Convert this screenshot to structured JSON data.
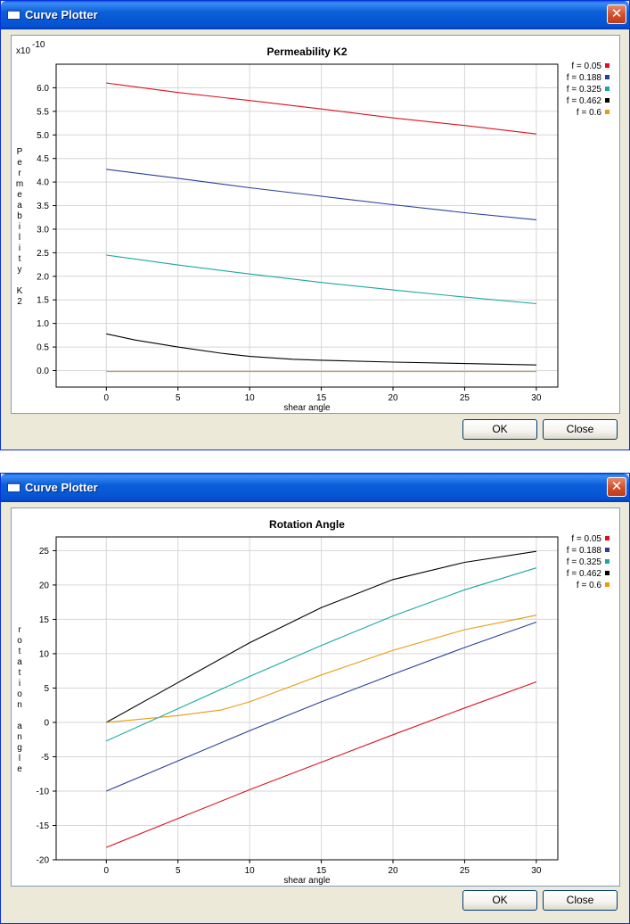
{
  "windows": [
    {
      "title": "Curve Plotter",
      "ok_label": "OK",
      "close_label": "Close",
      "icons": {
        "app": "window-icon",
        "close": "close-icon"
      },
      "chart_data": {
        "type": "line",
        "title": "Permeability K2",
        "xlabel": "shear angle",
        "ylabel": "Permeability K2",
        "y_exponent": "x10",
        "y_exponent_power": "-10",
        "xlim": [
          -3.5,
          31.5
        ],
        "ylim": [
          -0.35,
          6.5
        ],
        "x_ticks": [
          0,
          5,
          10,
          15,
          20,
          25,
          30
        ],
        "y_ticks": [
          0.0,
          0.5,
          1.0,
          1.5,
          2.0,
          2.5,
          3.0,
          3.5,
          4.0,
          4.5,
          5.0,
          5.5,
          6.0
        ],
        "y_tick_labels": [
          "0.0",
          "0.5",
          "1.0",
          "1.5",
          "2.0",
          "2.5",
          "3.0",
          "3.5",
          "4.0",
          "4.5",
          "5.0",
          "5.5",
          "6.0"
        ],
        "grid": true,
        "legend_position": "right",
        "series": [
          {
            "name": "f = 0.05",
            "color": "#dd1122",
            "x": [
              0,
              5,
              10,
              15,
              20,
              25,
              30
            ],
            "values": [
              6.1,
              5.9,
              5.73,
              5.55,
              5.36,
              5.2,
              5.02
            ]
          },
          {
            "name": "f = 0.188",
            "color": "#2a3f9a",
            "x": [
              0,
              5,
              10,
              15,
              20,
              25,
              30
            ],
            "values": [
              4.27,
              4.08,
              3.88,
              3.7,
              3.52,
              3.35,
              3.2
            ]
          },
          {
            "name": "f = 0.325",
            "color": "#18a8a0",
            "x": [
              0,
              5,
              10,
              15,
              20,
              25,
              30
            ],
            "values": [
              2.45,
              2.24,
              2.05,
              1.87,
              1.71,
              1.56,
              1.42
            ]
          },
          {
            "name": "f = 0.462",
            "color": "#000000",
            "x": [
              0,
              2,
              5,
              8,
              10,
              13,
              15,
              20,
              25,
              30
            ],
            "values": [
              0.78,
              0.65,
              0.5,
              0.37,
              0.3,
              0.24,
              0.22,
              0.18,
              0.15,
              0.12
            ]
          },
          {
            "name": "f = 0.6",
            "color": "#e89a10",
            "x": [
              0,
              5,
              10,
              15,
              20,
              25,
              30
            ],
            "values": [
              -0.02,
              -0.02,
              -0.02,
              -0.02,
              -0.02,
              -0.02,
              -0.02
            ]
          }
        ]
      }
    },
    {
      "title": "Curve Plotter",
      "ok_label": "OK",
      "close_label": "Close",
      "icons": {
        "app": "window-icon",
        "close": "close-icon"
      },
      "chart_data": {
        "type": "line",
        "title": "Rotation Angle",
        "xlabel": "shear angle",
        "ylabel": "rotation angle",
        "xlim": [
          -3.5,
          31.5
        ],
        "ylim": [
          -20,
          27
        ],
        "x_ticks": [
          0,
          5,
          10,
          15,
          20,
          25,
          30
        ],
        "y_ticks": [
          -20,
          -15,
          -10,
          -5,
          0,
          5,
          10,
          15,
          20,
          25
        ],
        "y_tick_labels": [
          "-20",
          "-15",
          "-10",
          "-5",
          "0",
          "5",
          "10",
          "15",
          "20",
          "25"
        ],
        "grid": true,
        "legend_position": "right",
        "series": [
          {
            "name": "f = 0.05",
            "color": "#dd1122",
            "x": [
              0,
              5,
              10,
              15,
              20,
              25,
              30
            ],
            "values": [
              -18.2,
              -14,
              -9.8,
              -5.8,
              -1.8,
              2.1,
              5.9
            ]
          },
          {
            "name": "f = 0.188",
            "color": "#2a3f9a",
            "x": [
              0,
              5,
              10,
              15,
              20,
              25,
              30
            ],
            "values": [
              -10,
              -5.6,
              -1.2,
              3.0,
              7.0,
              10.9,
              14.6
            ]
          },
          {
            "name": "f = 0.325",
            "color": "#18a8a0",
            "x": [
              0,
              5,
              10,
              15,
              20,
              25,
              30
            ],
            "values": [
              -2.7,
              2.0,
              6.7,
              11.2,
              15.5,
              19.3,
              22.5
            ]
          },
          {
            "name": "f = 0.462",
            "color": "#000000",
            "x": [
              0,
              5,
              10,
              15,
              20,
              25,
              30
            ],
            "values": [
              0,
              5.8,
              11.6,
              16.7,
              20.8,
              23.3,
              24.9
            ]
          },
          {
            "name": "f = 0.6",
            "color": "#e89a10",
            "x": [
              0,
              5,
              8,
              10,
              15,
              20,
              25,
              30
            ],
            "values": [
              0,
              1.0,
              1.8,
              3.0,
              6.9,
              10.5,
              13.5,
              15.6
            ]
          }
        ]
      }
    }
  ]
}
